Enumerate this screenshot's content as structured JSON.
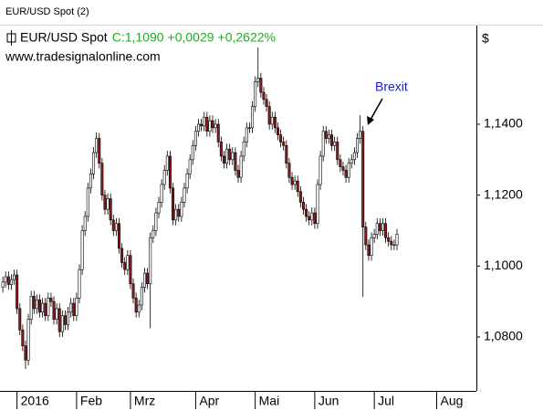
{
  "window_title": "EUR/USD Spot (2)",
  "chart_data": {
    "type": "candlestick",
    "series_name": "EUR/USD Spot",
    "last_quote": [
      "C:1,1090",
      "+0,0029",
      "+0,2622%"
    ],
    "source": "www.tradesignalonline.com",
    "y_axis_label": "$",
    "annotation": "Brexit",
    "up_color": "#ffffff",
    "down_color": "#8b1a1a",
    "xlim": [
      -1,
      167
    ],
    "xticks": [
      {
        "value": 5,
        "label": "2016"
      },
      {
        "value": 26,
        "label": "Feb"
      },
      {
        "value": 45,
        "label": "Mrz"
      },
      {
        "value": 68,
        "label": "Apr"
      },
      {
        "value": 89,
        "label": "Mai"
      },
      {
        "value": 110,
        "label": "Jun"
      },
      {
        "value": 131,
        "label": "Jul"
      },
      {
        "value": 153,
        "label": "Aug"
      }
    ],
    "ylim": [
      1.0648,
      1.1673
    ],
    "yticks": [
      {
        "value": 1.08,
        "label": "1,0800"
      },
      {
        "value": 1.1,
        "label": "1,1000"
      },
      {
        "value": 1.12,
        "label": "1,1200"
      },
      {
        "value": 1.14,
        "label": "1,1400"
      }
    ],
    "open": [
      1.094,
      1.0955,
      1.097,
      1.0948,
      1.0962,
      1.0975,
      1.088,
      1.082,
      1.0775,
      1.0735,
      1.085,
      1.0915,
      1.088,
      1.0905,
      1.087,
      1.0895,
      1.086,
      1.091,
      1.09,
      1.085,
      1.088,
      1.0815,
      1.086,
      1.0835,
      1.087,
      1.0895,
      1.086,
      1.091,
      1.099,
      1.11,
      1.114,
      1.122,
      1.126,
      1.132,
      1.136,
      1.129,
      1.12,
      1.116,
      1.119,
      1.113,
      1.11,
      1.112,
      1.105,
      1.101,
      1.099,
      1.103,
      1.095,
      1.091,
      1.087,
      1.089,
      1.094,
      1.098,
      1.095,
      1.108,
      1.11,
      1.115,
      1.118,
      1.123,
      1.127,
      1.131,
      1.122,
      1.113,
      1.116,
      1.114,
      1.118,
      1.122,
      1.126,
      1.13,
      1.134,
      1.138,
      1.14,
      1.1395,
      1.142,
      1.138,
      1.141,
      1.139,
      1.14,
      1.135,
      1.131,
      1.129,
      1.133,
      1.13,
      1.132,
      1.127,
      1.125,
      1.131,
      1.135,
      1.139,
      1.139,
      1.145,
      1.152,
      1.153,
      1.149,
      1.147,
      1.145,
      1.14,
      1.142,
      1.139,
      1.137,
      1.135,
      1.134,
      1.129,
      1.125,
      1.123,
      1.124,
      1.121,
      1.118,
      1.116,
      1.114,
      1.113,
      1.115,
      1.112,
      1.123,
      1.131,
      1.138,
      1.136,
      1.137,
      1.134,
      1.135,
      1.13,
      1.128,
      1.127,
      1.125,
      1.129,
      1.13,
      1.132,
      1.136,
      1.138,
      1.111,
      1.106,
      1.103,
      1.108,
      1.109,
      1.112,
      1.11,
      1.112,
      1.108,
      1.107,
      1.106,
      1.106
    ],
    "high": [
      1.097,
      1.0985,
      1.0985,
      1.0977,
      1.099,
      1.099,
      1.0895,
      1.0835,
      1.079,
      1.0865,
      1.093,
      1.093,
      1.092,
      1.092,
      1.091,
      1.091,
      1.0925,
      1.0925,
      1.0915,
      1.0895,
      1.0895,
      1.0875,
      1.0875,
      1.0885,
      1.091,
      1.091,
      1.0925,
      1.1005,
      1.1115,
      1.1155,
      1.1235,
      1.1275,
      1.1335,
      1.1377,
      1.1375,
      1.1305,
      1.1215,
      1.1205,
      1.1205,
      1.1145,
      1.1135,
      1.1135,
      1.1065,
      1.1025,
      1.1045,
      1.1045,
      1.0965,
      1.0925,
      1.0905,
      1.0955,
      1.0995,
      1.0995,
      1.1095,
      1.1115,
      1.1165,
      1.1195,
      1.1245,
      1.1285,
      1.1325,
      1.1325,
      1.1235,
      1.1175,
      1.1175,
      1.1195,
      1.1235,
      1.1275,
      1.1315,
      1.1355,
      1.1395,
      1.1415,
      1.1415,
      1.1435,
      1.1435,
      1.1425,
      1.1425,
      1.1415,
      1.1415,
      1.1365,
      1.1325,
      1.1345,
      1.1345,
      1.1335,
      1.1335,
      1.1285,
      1.1325,
      1.1365,
      1.1405,
      1.1405,
      1.1465,
      1.1535,
      1.1616,
      1.1545,
      1.1505,
      1.1485,
      1.1465,
      1.1435,
      1.1435,
      1.1405,
      1.1385,
      1.1365,
      1.1355,
      1.1305,
      1.1265,
      1.1255,
      1.1255,
      1.1225,
      1.1195,
      1.1175,
      1.1155,
      1.1165,
      1.1165,
      1.1245,
      1.1325,
      1.1395,
      1.1395,
      1.1385,
      1.1385,
      1.1365,
      1.1365,
      1.1315,
      1.1295,
      1.1285,
      1.1305,
      1.1315,
      1.1335,
      1.1375,
      1.1425,
      1.1395,
      1.1125,
      1.1075,
      1.1095,
      1.1105,
      1.1135,
      1.1135,
      1.1135,
      1.1135,
      1.1095,
      1.1085,
      1.1075,
      1.1105
    ],
    "low": [
      1.0925,
      1.094,
      1.0933,
      1.0933,
      1.0947,
      1.0865,
      1.0805,
      1.076,
      1.071,
      1.072,
      1.0835,
      1.0865,
      1.0865,
      1.0855,
      1.0855,
      1.0845,
      1.0845,
      1.0885,
      1.0835,
      1.0835,
      1.08,
      1.08,
      1.082,
      1.082,
      1.0855,
      1.0845,
      1.0845,
      1.0895,
      1.0975,
      1.1085,
      1.1125,
      1.1205,
      1.1245,
      1.1305,
      1.1275,
      1.1185,
      1.1145,
      1.1145,
      1.1115,
      1.1085,
      1.1085,
      1.1035,
      1.0995,
      1.0975,
      1.0975,
      1.0935,
      1.0895,
      1.0855,
      1.0855,
      1.0875,
      1.0925,
      1.0935,
      1.0825,
      1.1065,
      1.1085,
      1.1135,
      1.1165,
      1.1215,
      1.1255,
      1.1205,
      1.1115,
      1.1115,
      1.1125,
      1.1125,
      1.1165,
      1.1205,
      1.1245,
      1.1285,
      1.1325,
      1.1365,
      1.138,
      1.138,
      1.1365,
      1.1365,
      1.1375,
      1.1375,
      1.1335,
      1.1295,
      1.1275,
      1.1275,
      1.1285,
      1.1285,
      1.1255,
      1.1235,
      1.1235,
      1.1295,
      1.1335,
      1.1375,
      1.1375,
      1.1435,
      1.1505,
      1.1475,
      1.1455,
      1.1435,
      1.1385,
      1.1385,
      1.1375,
      1.1355,
      1.1335,
      1.1325,
      1.1275,
      1.1235,
      1.1215,
      1.1215,
      1.1195,
      1.1165,
      1.1145,
      1.1125,
      1.1115,
      1.1115,
      1.1105,
      1.1105,
      1.1215,
      1.1295,
      1.1345,
      1.1345,
      1.1325,
      1.1325,
      1.1285,
      1.1265,
      1.1255,
      1.1235,
      1.1235,
      1.1275,
      1.1285,
      1.1305,
      1.1345,
      1.0913,
      1.1045,
      1.1015,
      1.1015,
      1.1065,
      1.1075,
      1.1085,
      1.1085,
      1.1065,
      1.1055,
      1.1045,
      1.1045,
      1.1045
    ],
    "close": [
      1.0955,
      1.097,
      1.0948,
      1.0962,
      1.0975,
      1.088,
      1.082,
      1.0775,
      1.0735,
      1.085,
      1.0915,
      1.088,
      1.0905,
      1.087,
      1.0895,
      1.086,
      1.091,
      1.09,
      1.085,
      1.088,
      1.0815,
      1.086,
      1.0835,
      1.087,
      1.0895,
      1.086,
      1.091,
      1.099,
      1.11,
      1.114,
      1.122,
      1.126,
      1.132,
      1.136,
      1.129,
      1.12,
      1.116,
      1.119,
      1.113,
      1.11,
      1.112,
      1.105,
      1.101,
      1.099,
      1.103,
      1.095,
      1.091,
      1.087,
      1.089,
      1.094,
      1.098,
      1.095,
      1.108,
      1.11,
      1.115,
      1.118,
      1.123,
      1.127,
      1.131,
      1.122,
      1.113,
      1.116,
      1.114,
      1.118,
      1.122,
      1.126,
      1.13,
      1.134,
      1.138,
      1.14,
      1.1395,
      1.142,
      1.138,
      1.141,
      1.139,
      1.14,
      1.135,
      1.131,
      1.129,
      1.133,
      1.13,
      1.132,
      1.127,
      1.125,
      1.131,
      1.135,
      1.139,
      1.139,
      1.145,
      1.152,
      1.153,
      1.149,
      1.147,
      1.145,
      1.14,
      1.142,
      1.139,
      1.137,
      1.135,
      1.134,
      1.129,
      1.125,
      1.123,
      1.124,
      1.121,
      1.118,
      1.116,
      1.114,
      1.113,
      1.115,
      1.112,
      1.123,
      1.131,
      1.138,
      1.136,
      1.137,
      1.134,
      1.135,
      1.13,
      1.128,
      1.127,
      1.125,
      1.129,
      1.13,
      1.132,
      1.136,
      1.138,
      1.111,
      1.106,
      1.103,
      1.108,
      1.109,
      1.112,
      1.11,
      1.112,
      1.108,
      1.107,
      1.106,
      1.106,
      1.109
    ]
  }
}
